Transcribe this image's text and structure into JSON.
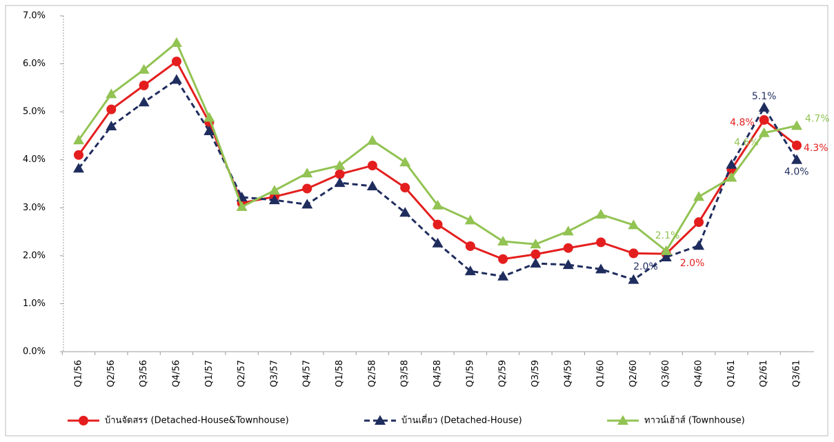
{
  "chart_data": {
    "type": "line",
    "categories": [
      "Q1/56",
      "Q2/56",
      "Q3/56",
      "Q4/56",
      "Q1/57",
      "Q2/57",
      "Q3/57",
      "Q4/57",
      "Q1/58",
      "Q2/58",
      "Q3/58",
      "Q4/58",
      "Q1/59",
      "Q2/59",
      "Q3/59",
      "Q4/59",
      "Q1/60",
      "Q2/60",
      "Q3/60",
      "Q4/60",
      "Q1/61",
      "Q2/61",
      "Q3/61"
    ],
    "ylim": [
      0,
      7
    ],
    "yticks": [
      {
        "value": 0,
        "label": "0.0%"
      },
      {
        "value": 1,
        "label": "1.0%"
      },
      {
        "value": 2,
        "label": "2.0%"
      },
      {
        "value": 3,
        "label": "3.0%"
      },
      {
        "value": 4,
        "label": "4.0%"
      },
      {
        "value": 5,
        "label": "5.0%"
      },
      {
        "value": 6,
        "label": "6.0%"
      },
      {
        "value": 7,
        "label": "7.0%"
      }
    ],
    "grid": false,
    "legend": "bottom",
    "series": [
      {
        "name": "บ้านจัดสรร  (Detached-House&Townhouse)",
        "color": "#e41e1e",
        "marker": "circle",
        "dash": false,
        "values": [
          4.1,
          5.05,
          5.55,
          6.05,
          4.78,
          3.1,
          3.23,
          3.4,
          3.7,
          3.88,
          3.42,
          2.65,
          2.2,
          1.93,
          2.03,
          2.16,
          2.28,
          2.05,
          2.04,
          2.7,
          3.8,
          4.83,
          4.3
        ],
        "value_labels": [
          null,
          null,
          null,
          null,
          null,
          null,
          null,
          null,
          null,
          null,
          null,
          null,
          null,
          null,
          null,
          null,
          null,
          null,
          "2.0%",
          null,
          null,
          "4.8%",
          "4.3%"
        ]
      },
      {
        "name": "บ้านเดี่ยว  (Detached-House)",
        "color": "#1f2d5e",
        "marker": "triangle",
        "dash": true,
        "values": [
          3.82,
          4.7,
          5.2,
          5.67,
          4.6,
          3.22,
          3.16,
          3.07,
          3.52,
          3.45,
          2.9,
          2.26,
          1.68,
          1.57,
          1.84,
          1.81,
          1.72,
          1.5,
          1.97,
          2.21,
          3.9,
          5.09,
          4.0
        ],
        "value_labels": [
          null,
          null,
          null,
          null,
          null,
          null,
          null,
          null,
          null,
          null,
          null,
          null,
          null,
          null,
          null,
          null,
          null,
          null,
          "2.0%",
          null,
          null,
          "5.1%",
          "4.0%"
        ]
      },
      {
        "name": "ทาวน์เฮ้าส์  (Townhouse)",
        "color": "#92c353",
        "marker": "triangle",
        "dash": false,
        "values": [
          4.41,
          5.37,
          5.88,
          6.44,
          4.88,
          3.02,
          3.36,
          3.72,
          3.88,
          4.4,
          3.95,
          3.05,
          2.74,
          2.3,
          2.24,
          2.51,
          2.86,
          2.64,
          2.1,
          3.23,
          3.63,
          4.56,
          4.71
        ],
        "value_labels": [
          null,
          null,
          null,
          null,
          null,
          null,
          null,
          null,
          null,
          null,
          null,
          null,
          null,
          null,
          null,
          null,
          null,
          null,
          "2.1%",
          null,
          null,
          "4.6%",
          "4.7%"
        ]
      }
    ]
  }
}
